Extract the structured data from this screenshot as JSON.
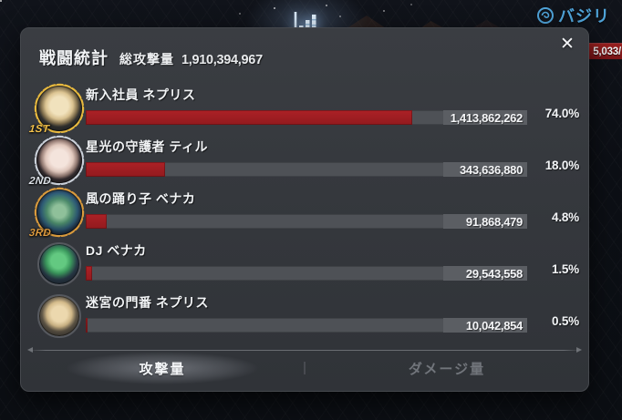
{
  "hud": {
    "chart_icon": "bar-chart-icon",
    "boss_icon": "element-swirl-icon",
    "boss_name": "バジリ",
    "boss_hp": "5,033/"
  },
  "panel": {
    "title": "戦闘統計",
    "total_label": "総攻撃量",
    "total_value": "1,910,394,967",
    "close_icon": "✕",
    "rows": [
      {
        "rank": "1ST",
        "name": "新入社員 ネプリス",
        "value": "1,413,862,262",
        "percent": "74.0%",
        "percent_num": 74.0
      },
      {
        "rank": "2ND",
        "name": "星光の守護者 ティル",
        "value": "343,636,880",
        "percent": "18.0%",
        "percent_num": 18.0
      },
      {
        "rank": "3RD",
        "name": "風の踊り子 ベナカ",
        "value": "91,868,479",
        "percent": "4.8%",
        "percent_num": 4.8
      },
      {
        "rank": "",
        "name": "DJ ベナカ",
        "value": "29,543,558",
        "percent": "1.5%",
        "percent_num": 1.5
      },
      {
        "rank": "",
        "name": "迷宮の門番 ネプリス",
        "value": "10,042,854",
        "percent": "0.5%",
        "percent_num": 0.5
      }
    ],
    "tabs": {
      "attack": "攻撃量",
      "damage": "ダメージ量"
    }
  },
  "chart_data": {
    "type": "bar",
    "title": "戦闘統計 総攻撃量",
    "total": 1910394967,
    "categories": [
      "新入社員 ネプリス",
      "星光の守護者 ティル",
      "風の踊り子 ベナカ",
      "DJ ベナカ",
      "迷宮の門番 ネプリス"
    ],
    "values": [
      1413862262,
      343636880,
      91868479,
      29543558,
      10042854
    ],
    "percents": [
      74.0,
      18.0,
      4.8,
      1.5,
      0.5
    ]
  },
  "colors": {
    "bar_fill": "#9e1b20",
    "bar_track": "#4e5156",
    "value_box": "#5b5e63",
    "panel_bg": "#35383d",
    "page_bg": "#0d1016",
    "accent_blue": "#4fa3d8",
    "hp_red": "#8c191d",
    "rank_gold": "#f2c14b",
    "rank_silver": "#dde2e8",
    "rank_bronze": "#dd9a3f"
  }
}
